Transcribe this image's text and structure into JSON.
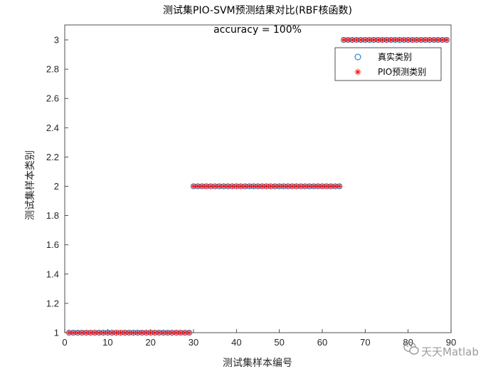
{
  "chart_data": {
    "type": "scatter",
    "title": "测试集PIO-SVM预测结果对比(RBF核函数)",
    "subtitle": "accuracy = 100%",
    "xlabel": "测试集样本编号",
    "ylabel": "测试集样本类别",
    "xlim": [
      0,
      90
    ],
    "ylim": [
      1,
      3
    ],
    "xticks": [
      "0",
      "10",
      "20",
      "30",
      "40",
      "50",
      "60",
      "70",
      "80",
      "90"
    ],
    "yticks": [
      "1",
      "1.2",
      "1.4",
      "1.6",
      "1.8",
      "2",
      "2.2",
      "2.4",
      "2.6",
      "2.8",
      "3"
    ],
    "grid": false,
    "legend_position": "top-right",
    "x": [
      1,
      2,
      3,
      4,
      5,
      6,
      7,
      8,
      9,
      10,
      11,
      12,
      13,
      14,
      15,
      16,
      17,
      18,
      19,
      20,
      21,
      22,
      23,
      24,
      25,
      26,
      27,
      28,
      29,
      30,
      31,
      32,
      33,
      34,
      35,
      36,
      37,
      38,
      39,
      40,
      41,
      42,
      43,
      44,
      45,
      46,
      47,
      48,
      49,
      50,
      51,
      52,
      53,
      54,
      55,
      56,
      57,
      58,
      59,
      60,
      61,
      62,
      63,
      64,
      65,
      66,
      67,
      68,
      69,
      70,
      71,
      72,
      73,
      74,
      75,
      76,
      77,
      78,
      79,
      80,
      81,
      82,
      83,
      84,
      85,
      86,
      87,
      88,
      89
    ],
    "series": [
      {
        "name": "真实类别",
        "marker": "circle",
        "color": "#0072BD",
        "values": [
          1,
          1,
          1,
          1,
          1,
          1,
          1,
          1,
          1,
          1,
          1,
          1,
          1,
          1,
          1,
          1,
          1,
          1,
          1,
          1,
          1,
          1,
          1,
          1,
          1,
          1,
          1,
          1,
          1,
          2,
          2,
          2,
          2,
          2,
          2,
          2,
          2,
          2,
          2,
          2,
          2,
          2,
          2,
          2,
          2,
          2,
          2,
          2,
          2,
          2,
          2,
          2,
          2,
          2,
          2,
          2,
          2,
          2,
          2,
          2,
          2,
          2,
          2,
          2,
          3,
          3,
          3,
          3,
          3,
          3,
          3,
          3,
          3,
          3,
          3,
          3,
          3,
          3,
          3,
          3,
          3,
          3,
          3,
          3,
          3,
          3,
          3,
          3,
          3
        ]
      },
      {
        "name": "PIO预测类别",
        "marker": "asterisk",
        "color": "#FF0000",
        "values": [
          1,
          1,
          1,
          1,
          1,
          1,
          1,
          1,
          1,
          1,
          1,
          1,
          1,
          1,
          1,
          1,
          1,
          1,
          1,
          1,
          1,
          1,
          1,
          1,
          1,
          1,
          1,
          1,
          1,
          2,
          2,
          2,
          2,
          2,
          2,
          2,
          2,
          2,
          2,
          2,
          2,
          2,
          2,
          2,
          2,
          2,
          2,
          2,
          2,
          2,
          2,
          2,
          2,
          2,
          2,
          2,
          2,
          2,
          2,
          2,
          2,
          2,
          2,
          2,
          3,
          3,
          3,
          3,
          3,
          3,
          3,
          3,
          3,
          3,
          3,
          3,
          3,
          3,
          3,
          3,
          3,
          3,
          3,
          3,
          3,
          3,
          3,
          3,
          3
        ]
      }
    ]
  },
  "watermark": {
    "text": "天天Matlab",
    "icon": "wechat-icon"
  }
}
